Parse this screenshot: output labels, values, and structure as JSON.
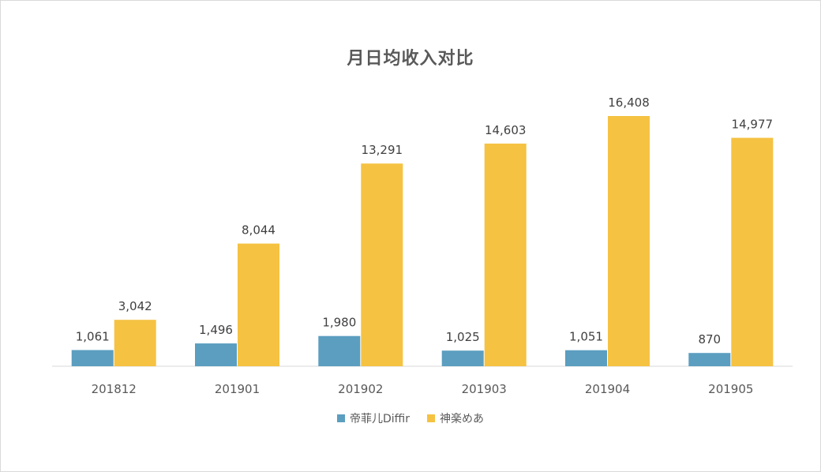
{
  "chart_data": {
    "type": "bar",
    "title": "月日均收入对比",
    "categories": [
      "201812",
      "201901",
      "201902",
      "201903",
      "201904",
      "201905"
    ],
    "series": [
      {
        "name": "帝菲儿Diffir",
        "color": "#5B9EC0",
        "values": [
          1061,
          1496,
          1980,
          1025,
          1051,
          870
        ],
        "labels": [
          "1,061",
          "1,496",
          "1,980",
          "1,025",
          "1,051",
          "870"
        ]
      },
      {
        "name": "神楽めあ",
        "color": "#F5C242",
        "values": [
          3042,
          8044,
          13291,
          14603,
          16408,
          14977
        ],
        "labels": [
          "3,042",
          "8,044",
          "13,291",
          "14,603",
          "16,408",
          "14,977"
        ]
      }
    ],
    "xlabel": "",
    "ylabel": "",
    "ylim": [
      0,
      16408
    ],
    "grid": false,
    "legend_position": "bottom"
  }
}
